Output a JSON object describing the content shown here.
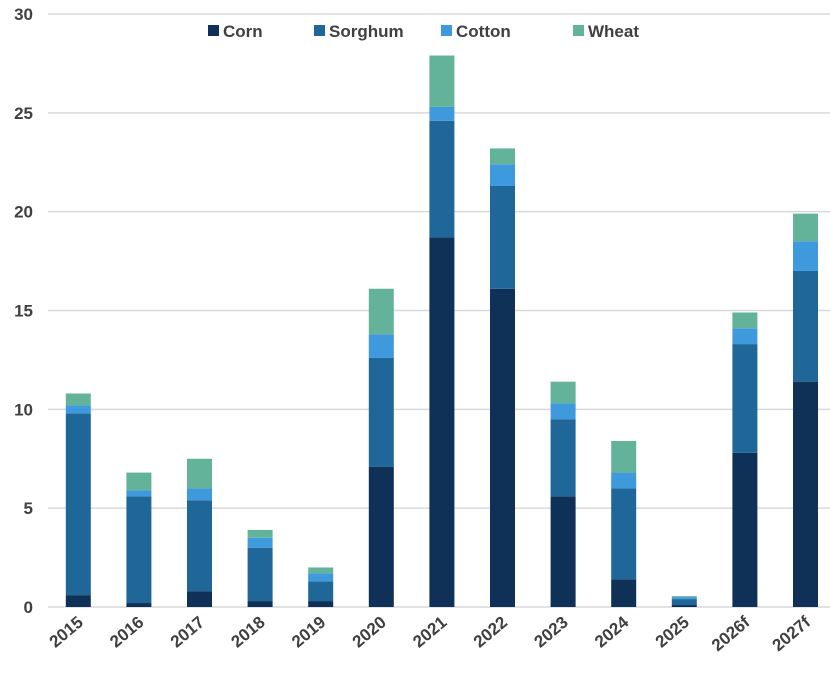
{
  "chart_data": {
    "type": "bar",
    "stacked": true,
    "categories": [
      "2015",
      "2016",
      "2017",
      "2018",
      "2019",
      "2020",
      "2021",
      "2022",
      "2023",
      "2024",
      "2025",
      "2026f",
      "2027f"
    ],
    "series": [
      {
        "name": "Corn",
        "color": "#0f3057",
        "values": [
          0.6,
          0.2,
          0.8,
          0.3,
          0.3,
          7.1,
          18.7,
          16.1,
          5.6,
          1.4,
          0.1,
          7.8,
          11.4
        ]
      },
      {
        "name": "Sorghum",
        "color": "#1f6699",
        "values": [
          9.2,
          5.4,
          4.6,
          2.7,
          1.0,
          5.5,
          5.9,
          5.2,
          3.9,
          4.6,
          0.3,
          5.5,
          5.6
        ]
      },
      {
        "name": "Cotton",
        "color": "#3e99dd",
        "values": [
          0.4,
          0.3,
          0.6,
          0.5,
          0.4,
          1.2,
          0.7,
          1.1,
          0.8,
          0.8,
          0.1,
          0.8,
          1.5
        ]
      },
      {
        "name": "Wheat",
        "color": "#62b39a",
        "values": [
          0.6,
          0.9,
          1.5,
          0.4,
          0.3,
          2.3,
          2.6,
          0.8,
          1.1,
          1.6,
          0.05,
          0.8,
          1.4
        ]
      }
    ],
    "y_ticks": [
      "0",
      "5",
      "10",
      "15",
      "20",
      "25",
      "30"
    ],
    "ylim": [
      0,
      30
    ],
    "title": "",
    "xlabel": "",
    "ylabel": "",
    "grid": true,
    "legend_position": "top-center",
    "colors": {
      "gridline": "#d9d9d9",
      "axis_text": "#404040"
    }
  }
}
